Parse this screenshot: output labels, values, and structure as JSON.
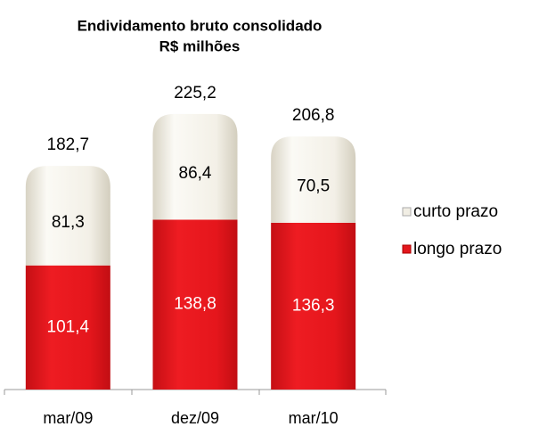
{
  "chart_data": {
    "type": "stacked_bar",
    "title": "Endividamento bruto consolidado",
    "subtitle": "R$ milhões",
    "categories": [
      "mar/09",
      "dez/09",
      "mar/10"
    ],
    "series": [
      {
        "name": "longo prazo",
        "color": "#e3161c",
        "values": [
          101.4,
          138.8,
          136.3
        ],
        "value_labels": [
          "101,4",
          "138,8",
          "136,3"
        ]
      },
      {
        "name": "curto prazo",
        "color": "#f1eee4",
        "values": [
          81.3,
          86.4,
          70.5
        ],
        "value_labels": [
          "81,3",
          "86,4",
          "70,5"
        ]
      }
    ],
    "totals": {
      "values": [
        182.7,
        225.2,
        206.8
      ],
      "value_labels": [
        "182,7",
        "225,2",
        "206,8"
      ]
    },
    "ylim": [
      0,
      240
    ],
    "legend": "right"
  }
}
